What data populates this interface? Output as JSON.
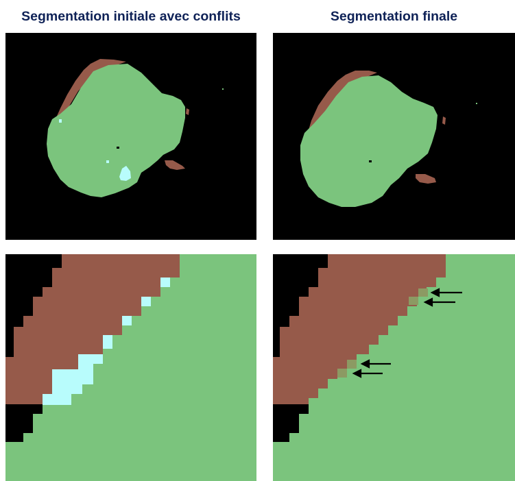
{
  "titles": {
    "left": "Segmentation initiale avec conflits",
    "right": "Segmentation finale"
  },
  "colors": {
    "background": "#000000",
    "green_label": "#7bc47d",
    "brown_label": "#965a4a",
    "conflict_cyan": "#b8fcfc",
    "resolved_olive": "#8c9a63",
    "arrow": "#000000",
    "title_text": "#0f2257"
  },
  "legend_icons": [
    "left-arrow-icon"
  ]
}
